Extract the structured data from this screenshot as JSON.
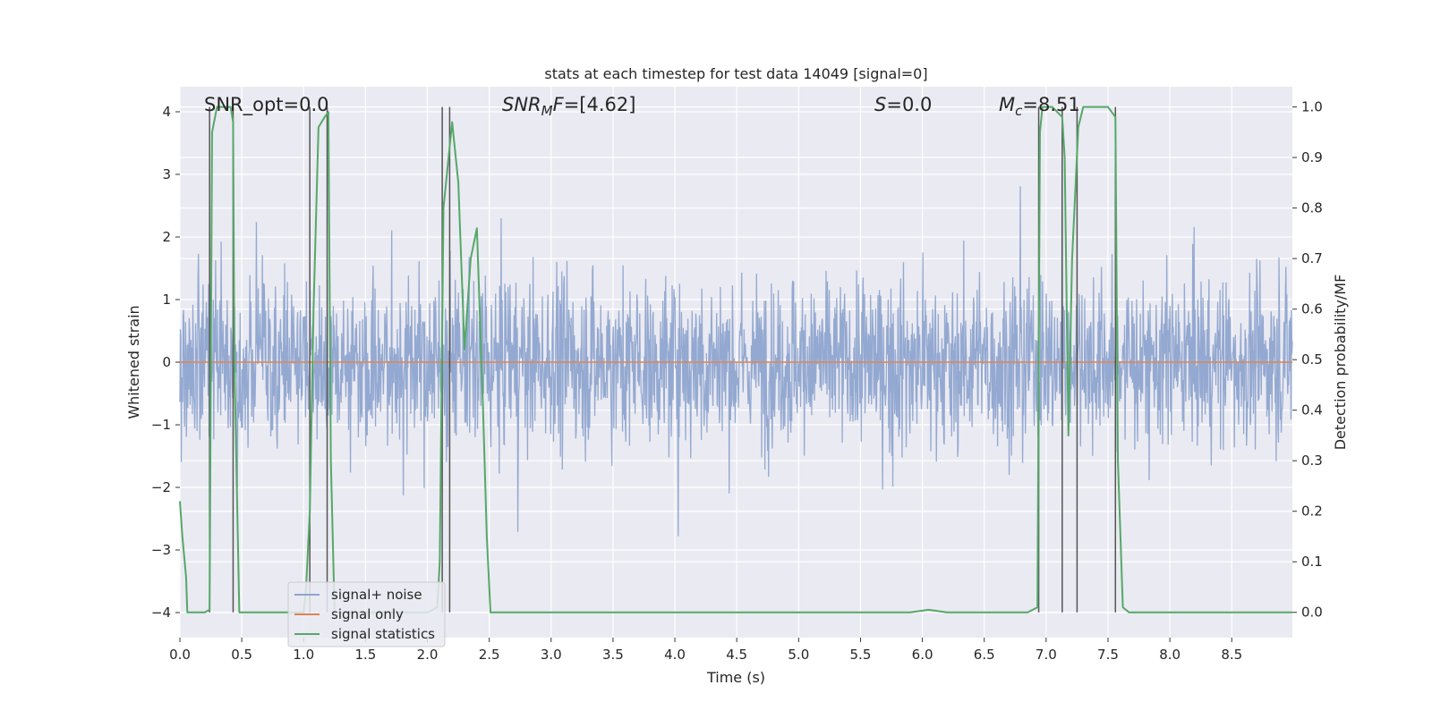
{
  "chart_data": {
    "type": "line",
    "title": "stats at each timestep for test data 14049 [signal=0]",
    "xlabel": "Time (s)",
    "ylabel_left": "Whitened strain",
    "ylabel_right": "Detection probability/MF",
    "xlim": [
      0.0,
      8.99
    ],
    "ylim_left": [
      -4.4,
      4.4
    ],
    "ylim_right": [
      -0.05,
      1.04
    ],
    "x_ticks": [
      "0.0",
      "0.5",
      "1.0",
      "1.5",
      "2.0",
      "2.5",
      "3.0",
      "3.5",
      "4.0",
      "4.5",
      "5.0",
      "5.5",
      "6.0",
      "6.5",
      "7.0",
      "7.5",
      "8.0",
      "8.5"
    ],
    "y_ticks_left": [
      "4",
      "3",
      "2",
      "1",
      "0",
      "−1",
      "−2",
      "−3",
      "−4"
    ],
    "y_ticks_right": [
      "1.0",
      "0.9",
      "0.8",
      "0.7",
      "0.6",
      "0.5",
      "0.4",
      "0.3",
      "0.2",
      "0.1",
      "0.0"
    ],
    "grid": true,
    "legend_placement": "lower-left",
    "annotations": [
      {
        "parts": [
          {
            "t": "SNR_opt=0.0",
            "italic": false
          }
        ]
      },
      {
        "parts": [
          {
            "t": "SNR",
            "italic": true
          },
          {
            "t": "M",
            "italic": true,
            "sub": true
          },
          {
            "t": "F",
            "italic": true
          },
          {
            "t": "=[4.62]",
            "italic": false
          }
        ]
      },
      {
        "parts": [
          {
            "t": "S",
            "italic": true
          },
          {
            "t": "=0.0",
            "italic": false
          }
        ]
      },
      {
        "parts": [
          {
            "t": "M",
            "italic": true
          },
          {
            "t": "c",
            "italic": true,
            "sub": true
          },
          {
            "t": "=8.51",
            "italic": false
          }
        ]
      }
    ],
    "series": [
      {
        "name": "signal+ noise",
        "color": "#8fa5cf",
        "axis": "left",
        "style": "noise",
        "amplitude_envelope": 3.6
      },
      {
        "name": "signal only",
        "color": "#dd8452",
        "axis": "left",
        "values": [
          [
            0.0,
            0.0
          ],
          [
            8.99,
            0.0
          ]
        ]
      },
      {
        "name": "signal statistics",
        "color": "#55a868",
        "axis": "right",
        "values": [
          [
            0.0,
            0.22
          ],
          [
            0.02,
            0.15
          ],
          [
            0.05,
            0.07
          ],
          [
            0.06,
            0.0
          ],
          [
            0.2,
            0.0
          ],
          [
            0.24,
            0.005
          ],
          [
            0.26,
            0.95
          ],
          [
            0.3,
            1.0
          ],
          [
            0.41,
            1.0
          ],
          [
            0.43,
            0.97
          ],
          [
            0.44,
            0.5
          ],
          [
            0.48,
            0.0
          ],
          [
            0.7,
            0.0
          ],
          [
            0.88,
            0.0
          ],
          [
            1.0,
            0.0
          ],
          [
            1.02,
            0.05
          ],
          [
            1.05,
            0.2
          ],
          [
            1.08,
            0.6
          ],
          [
            1.12,
            0.96
          ],
          [
            1.17,
            0.98
          ],
          [
            1.2,
            0.99
          ],
          [
            1.22,
            0.3
          ],
          [
            1.25,
            0.0
          ],
          [
            1.8,
            0.0
          ],
          [
            2.0,
            0.0
          ],
          [
            2.08,
            0.01
          ],
          [
            2.1,
            0.1
          ],
          [
            2.13,
            0.8
          ],
          [
            2.2,
            0.97
          ],
          [
            2.25,
            0.85
          ],
          [
            2.3,
            0.52
          ],
          [
            2.35,
            0.7
          ],
          [
            2.4,
            0.76
          ],
          [
            2.45,
            0.4
          ],
          [
            2.48,
            0.15
          ],
          [
            2.51,
            0.0
          ],
          [
            5.9,
            0.0
          ],
          [
            6.05,
            0.005
          ],
          [
            6.2,
            0.0
          ],
          [
            6.85,
            0.0
          ],
          [
            6.93,
            0.01
          ],
          [
            6.95,
            0.95
          ],
          [
            6.97,
            1.0
          ],
          [
            7.05,
            1.0
          ],
          [
            7.13,
            0.98
          ],
          [
            7.15,
            0.9
          ],
          [
            7.18,
            0.35
          ],
          [
            7.21,
            0.7
          ],
          [
            7.26,
            0.96
          ],
          [
            7.3,
            1.0
          ],
          [
            7.5,
            1.0
          ],
          [
            7.56,
            0.98
          ],
          [
            7.58,
            0.3
          ],
          [
            7.62,
            0.01
          ],
          [
            7.67,
            0.0
          ],
          [
            8.99,
            0.0
          ]
        ]
      }
    ],
    "vertical_markers": [
      0.24,
      0.43,
      1.05,
      1.19,
      2.12,
      2.18,
      6.94,
      7.13,
      7.25,
      7.56
    ]
  }
}
